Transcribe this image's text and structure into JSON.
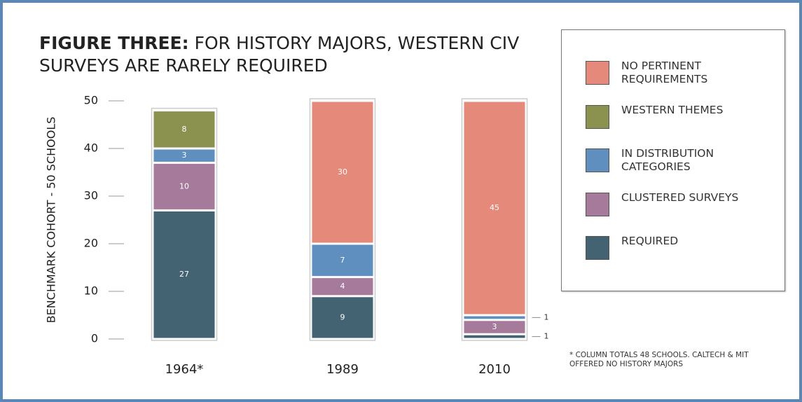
{
  "chart_data": {
    "type": "stacked_bar",
    "title_lead": "FIGURE THREE:",
    "title": "FOR HISTORY MAJORS, WESTERN CIV SURVEYS ARE RARELY REQUIRED",
    "y_label": "BENCHMARK COHORT - 50 SCHOOLS",
    "footnote": "* COLUMN TOTALS 48 SCHOOLS. CALTECH & MIT OFFERED NO HISTORY MAJORS",
    "categories": [
      "1964*",
      "1989",
      "2010"
    ],
    "series": [
      {
        "name": "REQUIRED",
        "color": "#436373",
        "values": [
          27,
          9,
          1
        ]
      },
      {
        "name": "CLUSTERED SURVEYS",
        "color": "#a57a9a",
        "values": [
          10,
          4,
          3
        ]
      },
      {
        "name": "IN DISTRIBUTION CATEGORIES",
        "color": "#5f8fbf",
        "values": [
          3,
          7,
          1
        ]
      },
      {
        "name": "WESTERN THEMES",
        "color": "#8b914f",
        "values": [
          8,
          null,
          null
        ]
      },
      {
        "name": "NO PERTINENT REQUIREMENTS",
        "color": "#e5897b",
        "values": [
          null,
          30,
          45
        ]
      }
    ],
    "ylim": [
      0,
      50
    ],
    "yticks": [
      0,
      10,
      20,
      30,
      40,
      50
    ],
    "legend": "right"
  }
}
